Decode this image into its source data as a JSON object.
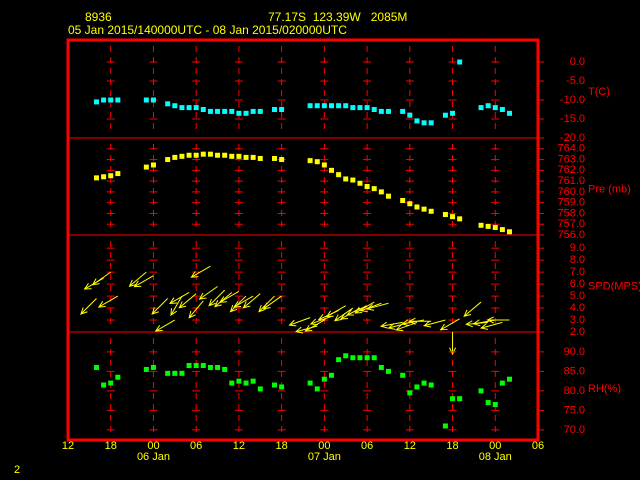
{
  "chart_data": {
    "type": "meteogram",
    "title": "8936",
    "location": "77.17S  123.39W   2085M",
    "subtitle": "05 Jan 2015/140000UTC - 08 Jan 2015/020000UTC",
    "page_number": "2",
    "xlim": [
      0,
      66
    ],
    "xticks": [
      {
        "value": 0,
        "label": "12"
      },
      {
        "value": 6,
        "label": "18"
      },
      {
        "value": 12,
        "label": "00"
      },
      {
        "value": 18,
        "label": "06"
      },
      {
        "value": 24,
        "label": "12"
      },
      {
        "value": 30,
        "label": "18"
      },
      {
        "value": 36,
        "label": "00"
      },
      {
        "value": 42,
        "label": "06"
      },
      {
        "value": 48,
        "label": "12"
      },
      {
        "value": 54,
        "label": "18"
      },
      {
        "value": 60,
        "label": "00"
      },
      {
        "value": 66,
        "label": "06"
      }
    ],
    "date_ticks": [
      {
        "value": 12,
        "label": "06 Jan"
      },
      {
        "value": 36,
        "label": "07 Jan"
      },
      {
        "value": 60,
        "label": "08 Jan"
      }
    ],
    "x": [
      4,
      5,
      6,
      7,
      11,
      12,
      14,
      15,
      16,
      17,
      18,
      19,
      20,
      21,
      22,
      23,
      24,
      25,
      26,
      27,
      29,
      30,
      34,
      35,
      36,
      37,
      38,
      39,
      40,
      41,
      42,
      43,
      44,
      45,
      47,
      48,
      49,
      50,
      51,
      53,
      54,
      55,
      58,
      59,
      60,
      61,
      62
    ],
    "panels": [
      {
        "type": "scatter",
        "ylabel": "T(C)",
        "color": "#00ffff",
        "ylim": [
          -20,
          5.8
        ],
        "yticks": [
          {
            "value": -20,
            "label": "-20.0"
          },
          {
            "value": -15,
            "label": "-15.0"
          },
          {
            "value": -10,
            "label": "-10.0"
          },
          {
            "value": -5,
            "label": "-5.0"
          },
          {
            "value": 0,
            "label": "0.0"
          }
        ],
        "values": [
          -10.5,
          -10,
          -10,
          -10,
          -10,
          -10,
          -11,
          -11.5,
          -12,
          -12,
          -12,
          -12.5,
          -13,
          -13,
          -13,
          -13,
          -13.5,
          -13.5,
          -13,
          -13,
          -12.5,
          -12.5,
          -11.5,
          -11.5,
          -11.5,
          -11.5,
          -11.5,
          -11.5,
          -12,
          -12,
          -12,
          -12.5,
          -13,
          -13,
          -13,
          -14,
          -15.5,
          -16,
          -16,
          -14,
          -13.5,
          0,
          -12,
          -11.5,
          -12,
          -12.5,
          -13.5
        ]
      },
      {
        "type": "scatter",
        "ylabel": "Pre (mb)",
        "color": "#ffff00",
        "ylim": [
          756,
          765
        ],
        "yticks": [
          {
            "value": 756,
            "label": "756.0"
          },
          {
            "value": 757,
            "label": "757.0"
          },
          {
            "value": 758,
            "label": "758.0"
          },
          {
            "value": 759,
            "label": "759.0"
          },
          {
            "value": 760,
            "label": "760.0"
          },
          {
            "value": 761,
            "label": "761.0"
          },
          {
            "value": 762,
            "label": "762.0"
          },
          {
            "value": 763,
            "label": "763.0"
          },
          {
            "value": 764,
            "label": "764.0"
          }
        ],
        "values": [
          761.3,
          761.4,
          761.5,
          761.7,
          762.3,
          762.5,
          763.0,
          763.2,
          763.3,
          763.4,
          763.4,
          763.5,
          763.5,
          763.4,
          763.4,
          763.3,
          763.3,
          763.2,
          763.2,
          763.1,
          763.1,
          763.0,
          762.9,
          762.8,
          762.5,
          762.0,
          761.6,
          761.2,
          761.1,
          760.8,
          760.5,
          760.3,
          760.0,
          759.6,
          759.2,
          758.9,
          758.6,
          758.4,
          758.2,
          757.9,
          757.7,
          757.5,
          756.9,
          756.8,
          756.7,
          756.5,
          756.3
        ]
      },
      {
        "type": "arrow",
        "ylabel": "SPD(MPS)",
        "color": "#ffff00",
        "ylim": [
          2,
          10.1
        ],
        "yticks": [
          {
            "value": 2,
            "label": "2.0"
          },
          {
            "value": 3,
            "label": "3.0"
          },
          {
            "value": 4,
            "label": "4.0"
          },
          {
            "value": 5,
            "label": "5.0"
          },
          {
            "value": 6,
            "label": "6.0"
          },
          {
            "value": 7,
            "label": "7.0"
          },
          {
            "value": 8,
            "label": "8.0"
          },
          {
            "value": 9,
            "label": "9.0"
          }
        ],
        "values": [
          4.8,
          6.5,
          7.0,
          5.0,
          7.0,
          6.7,
          4.8,
          3.0,
          5.0,
          5.3,
          5.2,
          4.6,
          7.5,
          5.8,
          5.5,
          5.3,
          5.4,
          5.0,
          5.0,
          5.2,
          5.0,
          5.0,
          3.2,
          2.5,
          3.0,
          3.3,
          3.8,
          4.2,
          4.0,
          4.0,
          4.2,
          4.5,
          4.4,
          4.4,
          2.8,
          2.8,
          2.8,
          3.0,
          2.9,
          3.0,
          2.0,
          3.1,
          4.5,
          2.8,
          3.0,
          2.8,
          3.0
        ],
        "directions": [
          45,
          60,
          55,
          60,
          50,
          60,
          45,
          60,
          30,
          60,
          50,
          40,
          60,
          55,
          45,
          50,
          60,
          45,
          60,
          50,
          45,
          55,
          70,
          75,
          60,
          70,
          65,
          60,
          55,
          60,
          65,
          60,
          70,
          75,
          80,
          75,
          70,
          80,
          90,
          75,
          0,
          60,
          50,
          85,
          80,
          75,
          90
        ]
      },
      {
        "type": "scatter",
        "ylabel": "RH(%)",
        "color": "#00ff00",
        "ylim": [
          67.4,
          95.1
        ],
        "yticks": [
          {
            "value": 70,
            "label": "70.0"
          },
          {
            "value": 75,
            "label": "75.0"
          },
          {
            "value": 80,
            "label": "80.0"
          },
          {
            "value": 85,
            "label": "85.0"
          },
          {
            "value": 90,
            "label": "90.0"
          }
        ],
        "values": [
          86,
          81.5,
          82,
          83.5,
          85.5,
          86,
          84.5,
          84.5,
          84.5,
          86.5,
          86.5,
          86.5,
          86,
          86,
          85.5,
          82,
          82.5,
          82,
          82.5,
          80.5,
          81.5,
          81,
          82,
          80.5,
          83,
          84,
          88,
          89,
          88.5,
          88.5,
          88.5,
          88.5,
          86,
          85,
          84,
          79.5,
          81,
          82,
          81.5,
          71,
          78,
          78,
          80,
          77,
          76.5,
          82,
          83
        ]
      }
    ]
  }
}
